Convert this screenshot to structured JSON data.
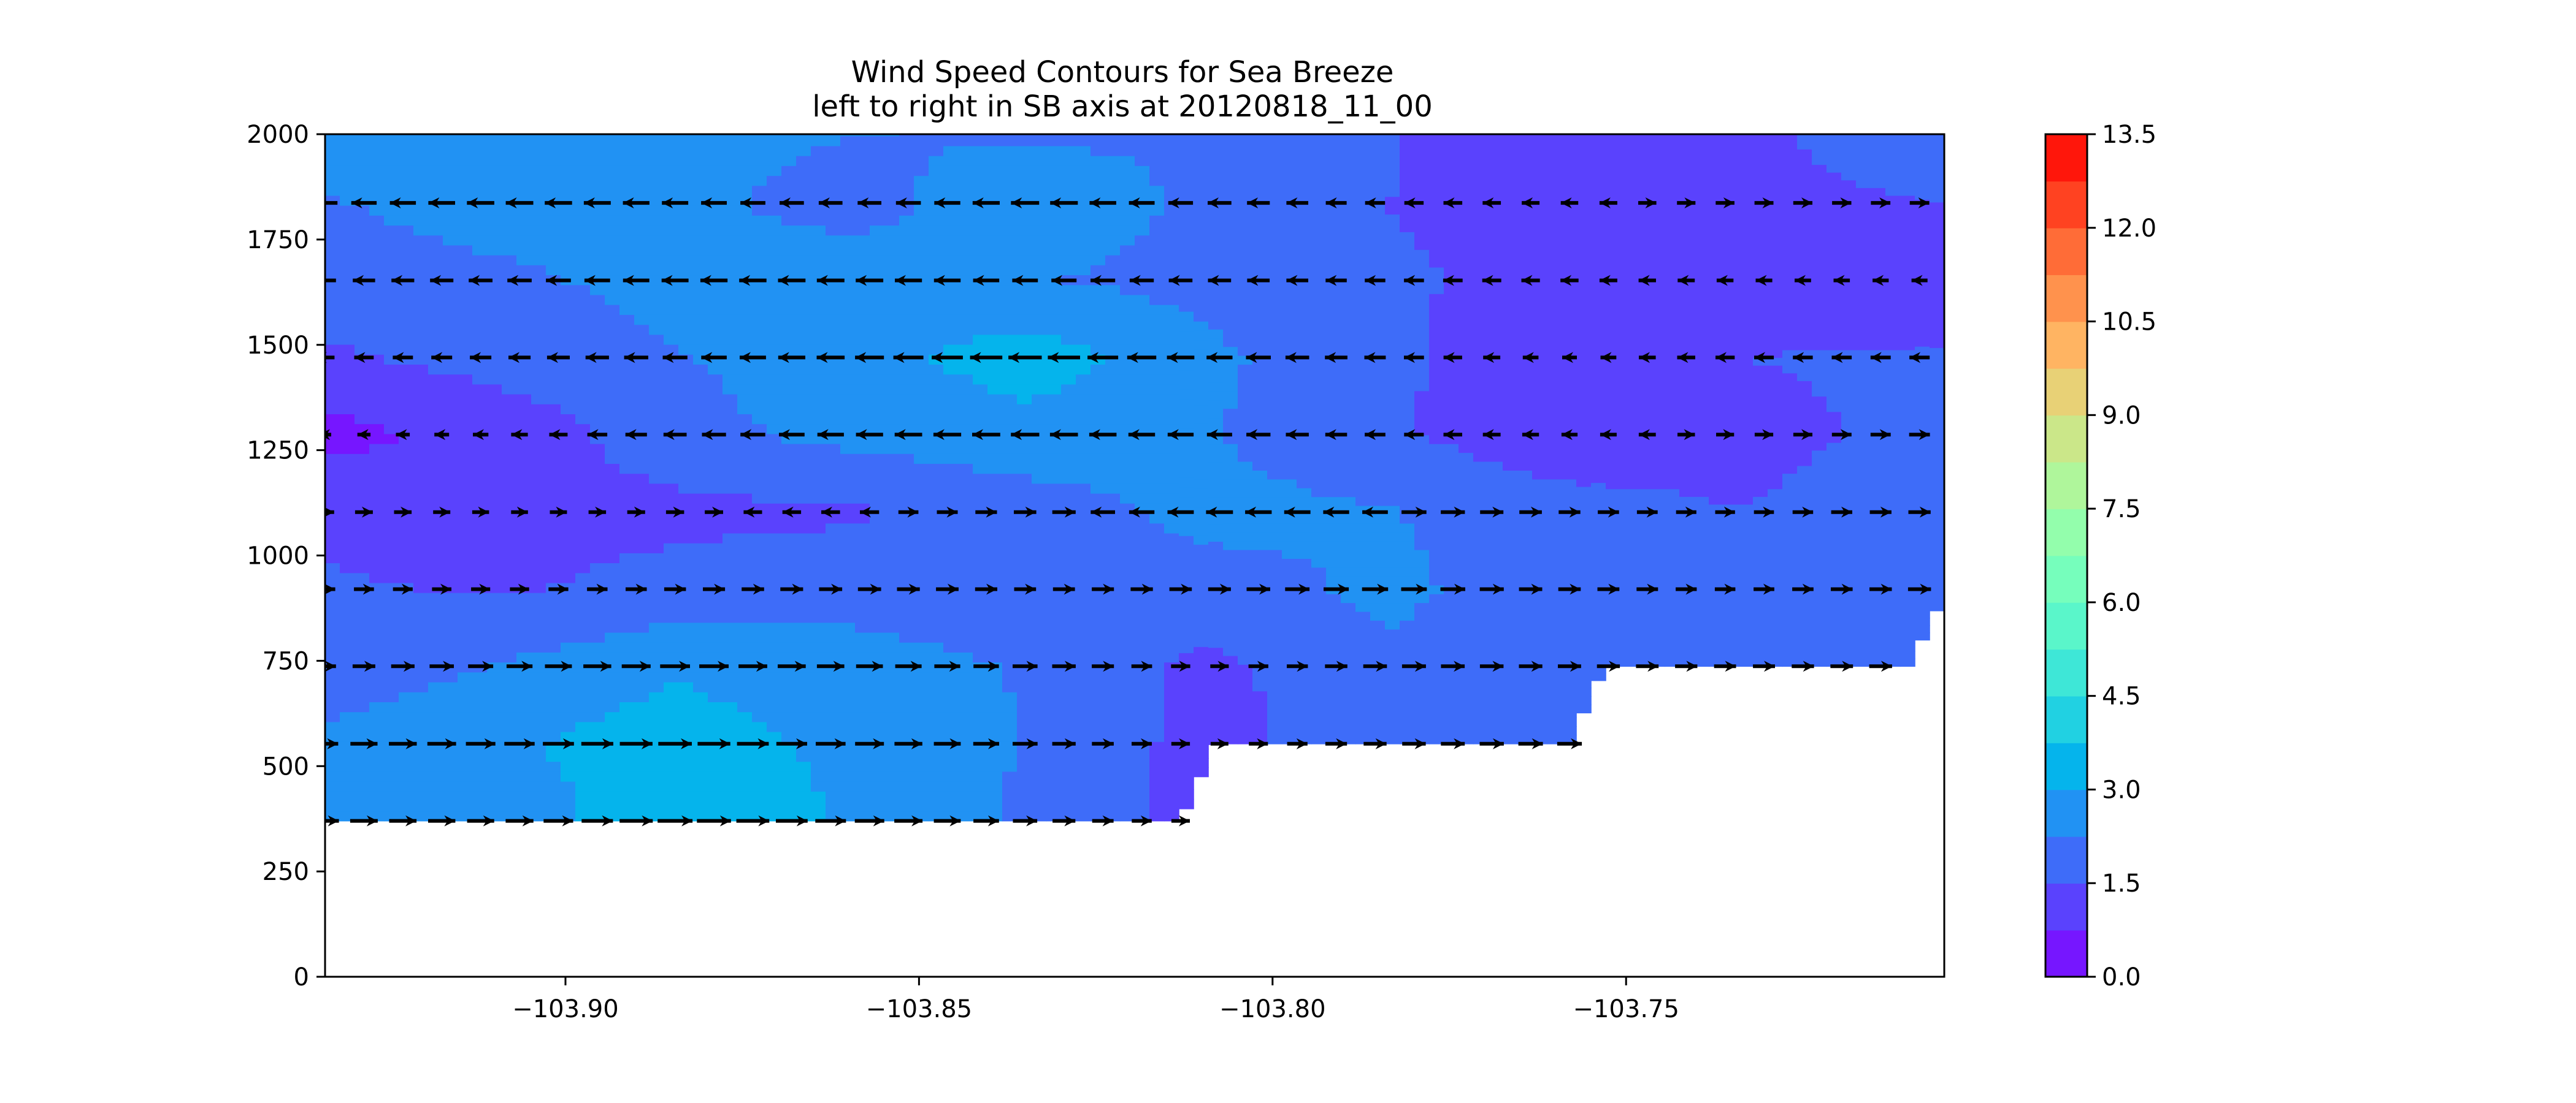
{
  "chart_data": {
    "type": "heatmap",
    "subtype": "filled contour with quiver (wind vectors)",
    "title": "Wind Speed Contours for Sea Breeze",
    "subtitle": "left to right in SB axis at 20120818_11_00",
    "xlabel": "",
    "ylabel": "",
    "xlim": [
      -103.934,
      -103.705
    ],
    "ylim": [
      0,
      2000
    ],
    "x_ticks": [
      -103.9,
      -103.85,
      -103.8,
      -103.75
    ],
    "x_tick_labels": [
      "−103.90",
      "−103.85",
      "−103.80",
      "−103.75"
    ],
    "y_ticks": [
      0,
      250,
      500,
      750,
      1000,
      1250,
      1500,
      1750,
      2000
    ],
    "y_tick_labels": [
      "0",
      "250",
      "500",
      "750",
      "1000",
      "1250",
      "1500",
      "1750",
      "2000"
    ],
    "grid": false,
    "colorbar": {
      "label": "",
      "vmin": 0.0,
      "vmax": 13.5,
      "levels": [
        0.0,
        0.75,
        1.5,
        2.25,
        3.0,
        3.75,
        4.5,
        5.25,
        6.0,
        6.75,
        7.5,
        8.25,
        9.0,
        9.75,
        10.5,
        11.25,
        12.0,
        12.75,
        13.5
      ],
      "ticks": [
        0.0,
        1.5,
        3.0,
        4.5,
        6.0,
        7.5,
        9.0,
        10.5,
        12.0,
        13.5
      ],
      "tick_labels": [
        "0.0",
        "1.5",
        "3.0",
        "4.5",
        "6.0",
        "7.5",
        "9.0",
        "10.5",
        "12.0",
        "13.5"
      ],
      "colormap": "rainbow"
    },
    "x_grid": [
      -103.934,
      -103.909,
      -103.884,
      -103.859,
      -103.834,
      -103.809,
      -103.784,
      -103.759,
      -103.734,
      -103.705
    ],
    "y_grid": [
      370,
      553,
      737,
      920,
      1103,
      1287,
      1470,
      1653,
      1837,
      2020
    ],
    "wind_speed": [
      [
        2.6,
        2.5,
        3.6,
        2.9,
        2.1,
        null,
        null,
        null,
        null,
        null
      ],
      [
        2.4,
        2.9,
        3.4,
        2.8,
        2.2,
        1.2,
        2.0,
        2.2,
        null,
        null
      ],
      [
        1.8,
        2.3,
        2.9,
        2.5,
        2.2,
        1.3,
        2.1,
        2.0,
        1.8,
        null
      ],
      [
        1.6,
        1.4,
        1.8,
        2.0,
        1.8,
        1.9,
        2.4,
        1.9,
        1.6,
        2.0
      ],
      [
        1.3,
        1.1,
        1.3,
        1.4,
        1.9,
        2.5,
        2.3,
        1.8,
        1.5,
        1.9
      ],
      [
        0.5,
        1.0,
        2.0,
        2.5,
        2.7,
        2.3,
        1.6,
        1.0,
        1.3,
        1.7
      ],
      [
        1.4,
        1.8,
        2.2,
        2.7,
        3.4,
        2.4,
        1.7,
        0.8,
        1.5,
        1.6
      ],
      [
        1.8,
        2.1,
        2.5,
        2.6,
        2.3,
        2.0,
        1.6,
        1.3,
        1.1,
        1.0
      ],
      [
        2.2,
        2.6,
        2.4,
        2.0,
        2.7,
        2.1,
        1.5,
        1.2,
        1.4,
        1.5
      ],
      [
        2.6,
        2.9,
        2.4,
        2.3,
        2.1,
        2.2,
        1.6,
        0.8,
        1.4,
        1.8
      ]
    ],
    "quiver_rows": [
      370,
      553,
      737,
      920,
      1103,
      1287,
      1470,
      1653,
      1837,
      2020
    ],
    "quiver_x_start": -103.934,
    "quiver_x_step": 0.0055,
    "quiver_direction_by_row": [
      [
        1,
        1,
        1,
        1,
        1,
        1,
        1,
        1,
        1,
        1,
        1,
        1,
        1,
        1,
        1,
        1,
        1,
        1,
        1,
        1,
        1,
        1,
        1,
        1,
        1,
        1,
        1,
        1,
        1,
        1,
        1,
        1,
        1,
        1,
        1,
        1,
        1,
        1,
        1,
        1,
        1,
        1,
        1
      ],
      [
        1,
        1,
        1,
        1,
        1,
        1,
        1,
        1,
        1,
        1,
        1,
        1,
        1,
        1,
        1,
        1,
        1,
        1,
        1,
        1,
        1,
        1,
        1,
        1,
        1,
        1,
        1,
        1,
        1,
        1,
        1,
        1,
        1,
        1,
        1,
        1,
        1,
        1,
        1,
        1,
        1,
        1,
        1
      ],
      [
        1,
        1,
        1,
        1,
        1,
        1,
        1,
        1,
        1,
        1,
        1,
        1,
        1,
        1,
        1,
        1,
        1,
        1,
        1,
        1,
        1,
        1,
        1,
        1,
        1,
        1,
        1,
        1,
        1,
        1,
        1,
        1,
        1,
        1,
        1,
        1,
        1,
        1,
        1,
        1,
        1,
        1,
        1
      ],
      [
        1,
        1,
        1,
        1,
        1,
        1,
        1,
        1,
        1,
        1,
        1,
        1,
        1,
        1,
        1,
        1,
        1,
        1,
        1,
        1,
        1,
        1,
        1,
        1,
        1,
        1,
        1,
        1,
        1,
        1,
        1,
        1,
        1,
        1,
        1,
        1,
        1,
        1,
        1,
        1,
        1,
        1,
        1
      ],
      [
        1,
        1,
        1,
        1,
        1,
        1,
        1,
        1,
        1,
        1,
        1,
        -1,
        -1,
        -1,
        -1,
        1,
        1,
        1,
        1,
        1,
        -1,
        -1,
        -1,
        -1,
        -1,
        -1,
        -1,
        -1,
        1,
        1,
        1,
        1,
        1,
        1,
        1,
        1,
        1,
        1,
        1,
        1,
        1,
        1,
        1
      ],
      [
        -1,
        -1,
        -1,
        -1,
        -1,
        -1,
        -1,
        -1,
        -1,
        -1,
        -1,
        -1,
        -1,
        -1,
        -1,
        -1,
        -1,
        -1,
        -1,
        -1,
        -1,
        -1,
        -1,
        -1,
        -1,
        -1,
        -1,
        -1,
        -1,
        -1,
        -1,
        -1,
        -1,
        -1,
        -1,
        1,
        1,
        1,
        1,
        1,
        1,
        1,
        1
      ],
      [
        -1,
        -1,
        -1,
        -1,
        -1,
        -1,
        -1,
        -1,
        -1,
        -1,
        -1,
        -1,
        -1,
        -1,
        -1,
        -1,
        -1,
        -1,
        -1,
        -1,
        -1,
        -1,
        -1,
        -1,
        -1,
        -1,
        -1,
        -1,
        -1,
        -1,
        -1,
        -1,
        -1,
        -1,
        -1,
        -1,
        -1,
        -1,
        -1,
        -1,
        -1,
        -1,
        -1
      ],
      [
        -1,
        -1,
        -1,
        -1,
        -1,
        -1,
        -1,
        -1,
        -1,
        -1,
        -1,
        -1,
        -1,
        -1,
        -1,
        -1,
        -1,
        -1,
        -1,
        -1,
        -1,
        -1,
        -1,
        -1,
        -1,
        -1,
        -1,
        -1,
        -1,
        -1,
        -1,
        -1,
        -1,
        -1,
        -1,
        -1,
        -1,
        -1,
        -1,
        -1,
        -1,
        -1,
        -1
      ],
      [
        -1,
        -1,
        -1,
        -1,
        -1,
        -1,
        -1,
        -1,
        -1,
        -1,
        -1,
        -1,
        -1,
        -1,
        -1,
        -1,
        -1,
        -1,
        -1,
        -1,
        -1,
        -1,
        -1,
        -1,
        -1,
        -1,
        -1,
        -1,
        -1,
        -1,
        -1,
        -1,
        -1,
        -1,
        1,
        1,
        1,
        1,
        1,
        1,
        1,
        1,
        1
      ],
      [
        -1,
        -1,
        -1,
        -1,
        -1,
        -1,
        -1,
        -1,
        -1,
        -1,
        -1,
        -1,
        -1,
        -1,
        -1,
        -1,
        -1,
        -1,
        -1,
        -1,
        -1,
        -1,
        -1,
        -1,
        -1,
        -1,
        -1,
        -1,
        -1,
        -1,
        -1,
        -1,
        -1,
        -1,
        -1,
        -1,
        -1,
        -1,
        -1,
        -1,
        -1,
        -1,
        -1
      ]
    ],
    "terrain_top": [
      {
        "x": -103.934,
        "y": 370
      },
      {
        "x": -103.813,
        "y": 370
      },
      {
        "x": -103.808,
        "y": 553
      },
      {
        "x": -103.758,
        "y": 553
      },
      {
        "x": -103.753,
        "y": 737
      },
      {
        "x": -103.71,
        "y": 737
      },
      {
        "x": -103.7045,
        "y": 920
      },
      {
        "x": -103.705,
        "y": 920
      }
    ]
  }
}
